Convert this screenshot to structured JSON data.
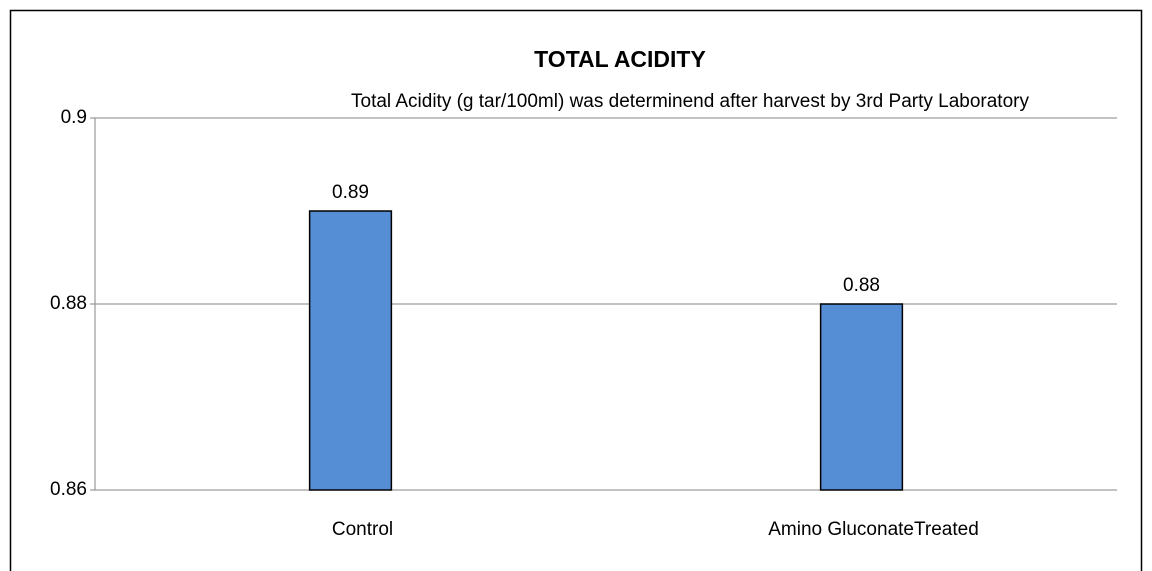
{
  "chart_data": {
    "type": "bar",
    "title": "TOTAL ACIDITY",
    "subtitle": "Total Acidity (g tar/100ml) was determinend after harvest by 3rd Party Laboratory",
    "categories": [
      "Control",
      "Amino GluconateTreated"
    ],
    "values": [
      0.89,
      0.88
    ],
    "color": "#558ed5",
    "ylim": [
      0.86,
      0.9
    ],
    "yticks": [
      0.86,
      0.88,
      0.9
    ],
    "grid": true
  }
}
